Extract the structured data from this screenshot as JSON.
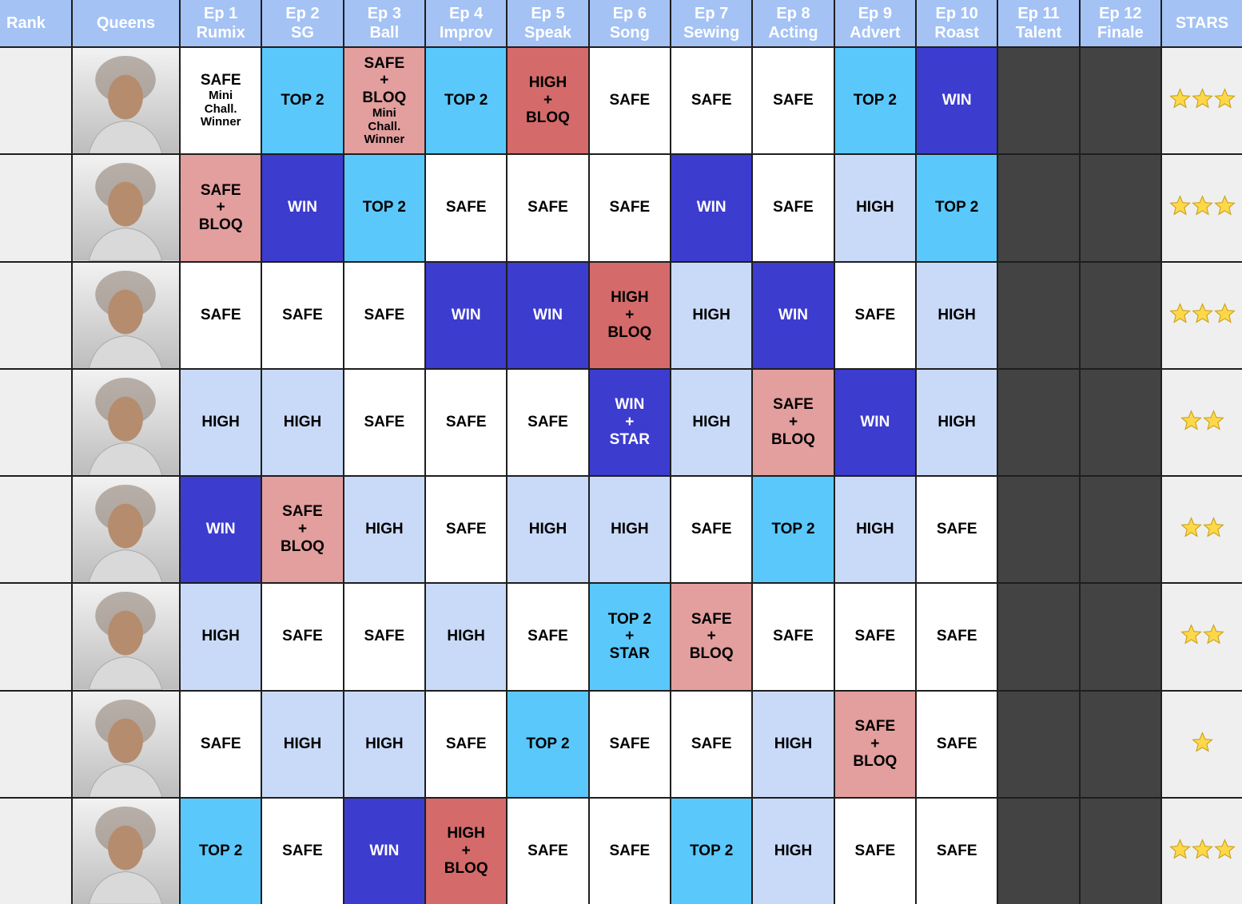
{
  "header": [
    [
      "Rank"
    ],
    [
      "Queens"
    ],
    [
      "Ep 1",
      "Rumix"
    ],
    [
      "Ep 2",
      "SG"
    ],
    [
      "Ep 3",
      "Ball"
    ],
    [
      "Ep 4",
      "Improv"
    ],
    [
      "Ep 5",
      "Speak"
    ],
    [
      "Ep 6",
      "Song"
    ],
    [
      "Ep 7",
      "Sewing"
    ],
    [
      "Ep 8",
      "Acting"
    ],
    [
      "Ep 9",
      "Advert"
    ],
    [
      "Ep 10",
      "Roast"
    ],
    [
      "Ep 11",
      "Talent"
    ],
    [
      "Ep 12",
      "Finale"
    ],
    [
      "STARS"
    ]
  ],
  "rows": [
    {
      "results": [
        {
          "lines": [
            "SAFE"
          ],
          "note": [
            "Mini",
            "Chall.",
            "Winner"
          ],
          "color": "#ffffff"
        },
        {
          "lines": [
            "TOP 2"
          ],
          "color": "#5bc8fb"
        },
        {
          "lines": [
            "SAFE",
            "+",
            "BLOQ"
          ],
          "note": [
            "Mini",
            "Chall.",
            "Winner"
          ],
          "color": "#e39e9e"
        },
        {
          "lines": [
            "TOP 2"
          ],
          "color": "#5bc8fb"
        },
        {
          "lines": [
            "HIGH",
            "+",
            "BLOQ"
          ],
          "color": "#d46a6a"
        },
        {
          "lines": [
            "SAFE"
          ],
          "color": "#ffffff"
        },
        {
          "lines": [
            "SAFE"
          ],
          "color": "#ffffff"
        },
        {
          "lines": [
            "SAFE"
          ],
          "color": "#ffffff"
        },
        {
          "lines": [
            "TOP 2"
          ],
          "color": "#5bc8fb"
        },
        {
          "lines": [
            "WIN"
          ],
          "color": "#3c3ccf"
        }
      ],
      "stars": 3
    },
    {
      "results": [
        {
          "lines": [
            "SAFE",
            "+",
            "BLOQ"
          ],
          "color": "#e39e9e"
        },
        {
          "lines": [
            "WIN"
          ],
          "color": "#3c3ccf"
        },
        {
          "lines": [
            "TOP 2"
          ],
          "color": "#5bc8fb"
        },
        {
          "lines": [
            "SAFE"
          ],
          "color": "#ffffff"
        },
        {
          "lines": [
            "SAFE"
          ],
          "color": "#ffffff"
        },
        {
          "lines": [
            "SAFE"
          ],
          "color": "#ffffff"
        },
        {
          "lines": [
            "WIN"
          ],
          "color": "#3c3ccf"
        },
        {
          "lines": [
            "SAFE"
          ],
          "color": "#ffffff"
        },
        {
          "lines": [
            "HIGH"
          ],
          "color": "#c9daf8"
        },
        {
          "lines": [
            "TOP 2"
          ],
          "color": "#5bc8fb"
        }
      ],
      "stars": 3
    },
    {
      "results": [
        {
          "lines": [
            "SAFE"
          ],
          "color": "#ffffff"
        },
        {
          "lines": [
            "SAFE"
          ],
          "color": "#ffffff"
        },
        {
          "lines": [
            "SAFE"
          ],
          "color": "#ffffff"
        },
        {
          "lines": [
            "WIN"
          ],
          "color": "#3c3ccf"
        },
        {
          "lines": [
            "WIN"
          ],
          "color": "#3c3ccf"
        },
        {
          "lines": [
            "HIGH",
            "+",
            "BLOQ"
          ],
          "color": "#d46a6a"
        },
        {
          "lines": [
            "HIGH"
          ],
          "color": "#c9daf8"
        },
        {
          "lines": [
            "WIN"
          ],
          "color": "#3c3ccf"
        },
        {
          "lines": [
            "SAFE"
          ],
          "color": "#ffffff"
        },
        {
          "lines": [
            "HIGH"
          ],
          "color": "#c9daf8"
        }
      ],
      "stars": 3
    },
    {
      "results": [
        {
          "lines": [
            "HIGH"
          ],
          "color": "#c9daf8"
        },
        {
          "lines": [
            "HIGH"
          ],
          "color": "#c9daf8"
        },
        {
          "lines": [
            "SAFE"
          ],
          "color": "#ffffff"
        },
        {
          "lines": [
            "SAFE"
          ],
          "color": "#ffffff"
        },
        {
          "lines": [
            "SAFE"
          ],
          "color": "#ffffff"
        },
        {
          "lines": [
            "WIN",
            "+",
            "STAR"
          ],
          "color": "#3c3ccf"
        },
        {
          "lines": [
            "HIGH"
          ],
          "color": "#c9daf8"
        },
        {
          "lines": [
            "SAFE",
            "+",
            "BLOQ"
          ],
          "color": "#e39e9e"
        },
        {
          "lines": [
            "WIN"
          ],
          "color": "#3c3ccf"
        },
        {
          "lines": [
            "HIGH"
          ],
          "color": "#c9daf8"
        }
      ],
      "stars": 2
    },
    {
      "results": [
        {
          "lines": [
            "WIN"
          ],
          "color": "#3c3ccf"
        },
        {
          "lines": [
            "SAFE",
            "+",
            "BLOQ"
          ],
          "color": "#e39e9e"
        },
        {
          "lines": [
            "HIGH"
          ],
          "color": "#c9daf8"
        },
        {
          "lines": [
            "SAFE"
          ],
          "color": "#ffffff"
        },
        {
          "lines": [
            "HIGH"
          ],
          "color": "#c9daf8"
        },
        {
          "lines": [
            "HIGH"
          ],
          "color": "#c9daf8"
        },
        {
          "lines": [
            "SAFE"
          ],
          "color": "#ffffff"
        },
        {
          "lines": [
            "TOP 2"
          ],
          "color": "#5bc8fb"
        },
        {
          "lines": [
            "HIGH"
          ],
          "color": "#c9daf8"
        },
        {
          "lines": [
            "SAFE"
          ],
          "color": "#ffffff"
        }
      ],
      "stars": 2
    },
    {
      "results": [
        {
          "lines": [
            "HIGH"
          ],
          "color": "#c9daf8"
        },
        {
          "lines": [
            "SAFE"
          ],
          "color": "#ffffff"
        },
        {
          "lines": [
            "SAFE"
          ],
          "color": "#ffffff"
        },
        {
          "lines": [
            "HIGH"
          ],
          "color": "#c9daf8"
        },
        {
          "lines": [
            "SAFE"
          ],
          "color": "#ffffff"
        },
        {
          "lines": [
            "TOP 2",
            "+",
            "STAR"
          ],
          "color": "#5bc8fb"
        },
        {
          "lines": [
            "SAFE",
            "+",
            "BLOQ"
          ],
          "color": "#e39e9e"
        },
        {
          "lines": [
            "SAFE"
          ],
          "color": "#ffffff"
        },
        {
          "lines": [
            "SAFE"
          ],
          "color": "#ffffff"
        },
        {
          "lines": [
            "SAFE"
          ],
          "color": "#ffffff"
        }
      ],
      "stars": 2
    },
    {
      "results": [
        {
          "lines": [
            "SAFE"
          ],
          "color": "#ffffff"
        },
        {
          "lines": [
            "HIGH"
          ],
          "color": "#c9daf8"
        },
        {
          "lines": [
            "HIGH"
          ],
          "color": "#c9daf8"
        },
        {
          "lines": [
            "SAFE"
          ],
          "color": "#ffffff"
        },
        {
          "lines": [
            "TOP 2"
          ],
          "color": "#5bc8fb"
        },
        {
          "lines": [
            "SAFE"
          ],
          "color": "#ffffff"
        },
        {
          "lines": [
            "SAFE"
          ],
          "color": "#ffffff"
        },
        {
          "lines": [
            "HIGH"
          ],
          "color": "#c9daf8"
        },
        {
          "lines": [
            "SAFE",
            "+",
            "BLOQ"
          ],
          "color": "#e39e9e"
        },
        {
          "lines": [
            "SAFE"
          ],
          "color": "#ffffff"
        }
      ],
      "stars": 1
    },
    {
      "results": [
        {
          "lines": [
            "TOP 2"
          ],
          "color": "#5bc8fb"
        },
        {
          "lines": [
            "SAFE"
          ],
          "color": "#ffffff"
        },
        {
          "lines": [
            "WIN"
          ],
          "color": "#3c3ccf"
        },
        {
          "lines": [
            "HIGH",
            "+",
            "BLOQ"
          ],
          "color": "#d46a6a"
        },
        {
          "lines": [
            "SAFE"
          ],
          "color": "#ffffff"
        },
        {
          "lines": [
            "SAFE"
          ],
          "color": "#ffffff"
        },
        {
          "lines": [
            "TOP 2"
          ],
          "color": "#5bc8fb"
        },
        {
          "lines": [
            "HIGH"
          ],
          "color": "#c9daf8"
        },
        {
          "lines": [
            "SAFE"
          ],
          "color": "#ffffff"
        },
        {
          "lines": [
            "SAFE"
          ],
          "color": "#ffffff"
        }
      ],
      "stars": 3
    }
  ]
}
